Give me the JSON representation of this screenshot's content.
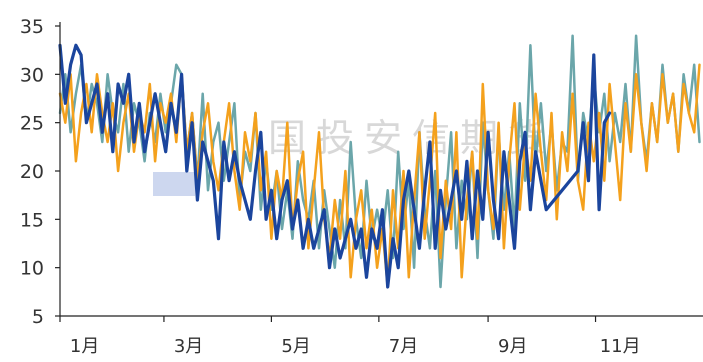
{
  "watermark": {
    "text": "国投安信期货"
  },
  "chart_data": {
    "type": "line",
    "ylim": [
      5,
      35
    ],
    "yticks": [
      5,
      10,
      15,
      20,
      25,
      30,
      35
    ],
    "xticks": [
      "01-01",
      "03-01",
      "05-01",
      "07-01",
      "09-01",
      "11-01"
    ],
    "xtick_labels": [
      "1月",
      "3月",
      "5月",
      "7月",
      "9月",
      "11月"
    ],
    "grid": false,
    "legend": "none",
    "x": [
      "01-01",
      "01-04",
      "01-07",
      "01-10",
      "01-13",
      "01-16",
      "01-19",
      "01-22",
      "01-25",
      "01-28",
      "01-31",
      "02-03",
      "02-06",
      "02-09",
      "02-12",
      "02-15",
      "02-18",
      "02-21",
      "02-24",
      "02-27",
      "03-02",
      "03-05",
      "03-08",
      "03-11",
      "03-14",
      "03-17",
      "03-20",
      "03-23",
      "03-26",
      "03-29",
      "04-01",
      "04-04",
      "04-07",
      "04-10",
      "04-13",
      "04-16",
      "04-19",
      "04-22",
      "04-25",
      "04-28",
      "05-01",
      "05-04",
      "05-07",
      "05-10",
      "05-13",
      "05-16",
      "05-19",
      "05-22",
      "05-25",
      "05-28",
      "05-31",
      "06-03",
      "06-06",
      "06-09",
      "06-12",
      "06-15",
      "06-18",
      "06-21",
      "06-24",
      "06-27",
      "06-30",
      "07-03",
      "07-06",
      "07-09",
      "07-12",
      "07-15",
      "07-18",
      "07-21",
      "07-24",
      "07-27",
      "07-30",
      "08-02",
      "08-05",
      "08-08",
      "08-11",
      "08-14",
      "08-17",
      "08-20",
      "08-23",
      "08-26",
      "08-29",
      "09-01",
      "09-04",
      "09-07",
      "09-10",
      "09-13",
      "09-16",
      "09-19",
      "09-22",
      "09-25",
      "09-28",
      "10-01",
      "10-04",
      "10-07",
      "10-10",
      "10-13",
      "10-16",
      "10-19",
      "10-22",
      "10-25",
      "10-28",
      "10-31",
      "11-03",
      "11-06",
      "11-09",
      "11-12",
      "11-15",
      "11-18",
      "11-21",
      "11-24",
      "11-27",
      "11-30",
      "12-03",
      "12-06",
      "12-09",
      "12-12",
      "12-15",
      "12-18",
      "12-21",
      "12-24",
      "12-27",
      "12-30"
    ],
    "series": [
      {
        "color": "#6ba6aa",
        "values": [
          26,
          30,
          24,
          28,
          31,
          25,
          29,
          27,
          23,
          30,
          26,
          24,
          29,
          22,
          27,
          25,
          21,
          26,
          23,
          28,
          24,
          27,
          31,
          30,
          22,
          26,
          19,
          28,
          18,
          23,
          25,
          19,
          23,
          27,
          17,
          22,
          20,
          26,
          16,
          21,
          16,
          20,
          14,
          18,
          13,
          21,
          17,
          15,
          19,
          12,
          18,
          14,
          10,
          17,
          12,
          23,
          15,
          11,
          19,
          13,
          16,
          13,
          18,
          11,
          22,
          14,
          19,
          10,
          24,
          16,
          12,
          20,
          8,
          17,
          24,
          12,
          19,
          15,
          22,
          11,
          25,
          18,
          13,
          24,
          16,
          22,
          14,
          27,
          19,
          33,
          21,
          27,
          20,
          25,
          18,
          23,
          22,
          34,
          19,
          26,
          23,
          30,
          24,
          28,
          21,
          26,
          23,
          29,
          22,
          34,
          25,
          21,
          27,
          23,
          31,
          25,
          28,
          22,
          30,
          26,
          31,
          23
        ]
      },
      {
        "color": "#f4a11d",
        "values": [
          28,
          25,
          30,
          21,
          26,
          29,
          24,
          30,
          26,
          23,
          27,
          20,
          25,
          28,
          22,
          26,
          24,
          29,
          21,
          27,
          25,
          28,
          23,
          30,
          22,
          26,
          19,
          24,
          27,
          21,
          18,
          23,
          27,
          20,
          16,
          24,
          21,
          26,
          18,
          22,
          13,
          20,
          17,
          25,
          14,
          19,
          22,
          12,
          18,
          24,
          15,
          11,
          17,
          13,
          20,
          9,
          15,
          18,
          12,
          16,
          10,
          14,
          8,
          18,
          12,
          20,
          9,
          17,
          24,
          13,
          19,
          26,
          11,
          19,
          14,
          24,
          9,
          17,
          22,
          13,
          29,
          18,
          14,
          25,
          12,
          21,
          27,
          16,
          23,
          19,
          28,
          22,
          17,
          26,
          15,
          24,
          20,
          28,
          19,
          16,
          25,
          21,
          26,
          19,
          29,
          23,
          17,
          27,
          22,
          30,
          25,
          20,
          27,
          23,
          30,
          25,
          28,
          22,
          29,
          26,
          24,
          31
        ]
      },
      {
        "color": "#1b459d",
        "values": [
          33,
          27,
          31,
          33,
          32,
          25,
          27,
          29,
          24,
          28,
          22,
          29,
          27,
          30,
          23,
          27,
          22,
          25,
          28,
          25,
          22,
          27,
          24,
          30,
          20,
          25,
          17,
          23,
          21,
          19,
          13,
          23,
          19,
          22,
          19,
          17,
          15,
          20,
          24,
          15,
          18,
          13,
          17,
          19,
          14,
          17,
          12,
          15,
          12,
          14,
          16,
          10,
          14,
          11,
          13,
          15,
          12,
          14,
          9,
          14,
          12,
          16,
          8,
          13,
          10,
          17,
          20,
          16,
          12,
          18,
          23,
          12,
          18,
          14,
          17,
          20,
          15,
          21,
          13,
          20,
          15,
          24,
          17,
          13,
          22,
          17,
          12,
          21,
          24,
          16,
          22,
          19,
          16,
          null,
          null,
          null,
          null,
          null,
          20,
          25,
          19,
          32,
          16,
          25,
          26,
          null,
          null,
          null,
          null,
          null,
          null,
          null,
          null,
          null,
          null,
          null,
          null,
          null,
          null,
          null,
          null,
          null
        ]
      }
    ]
  }
}
